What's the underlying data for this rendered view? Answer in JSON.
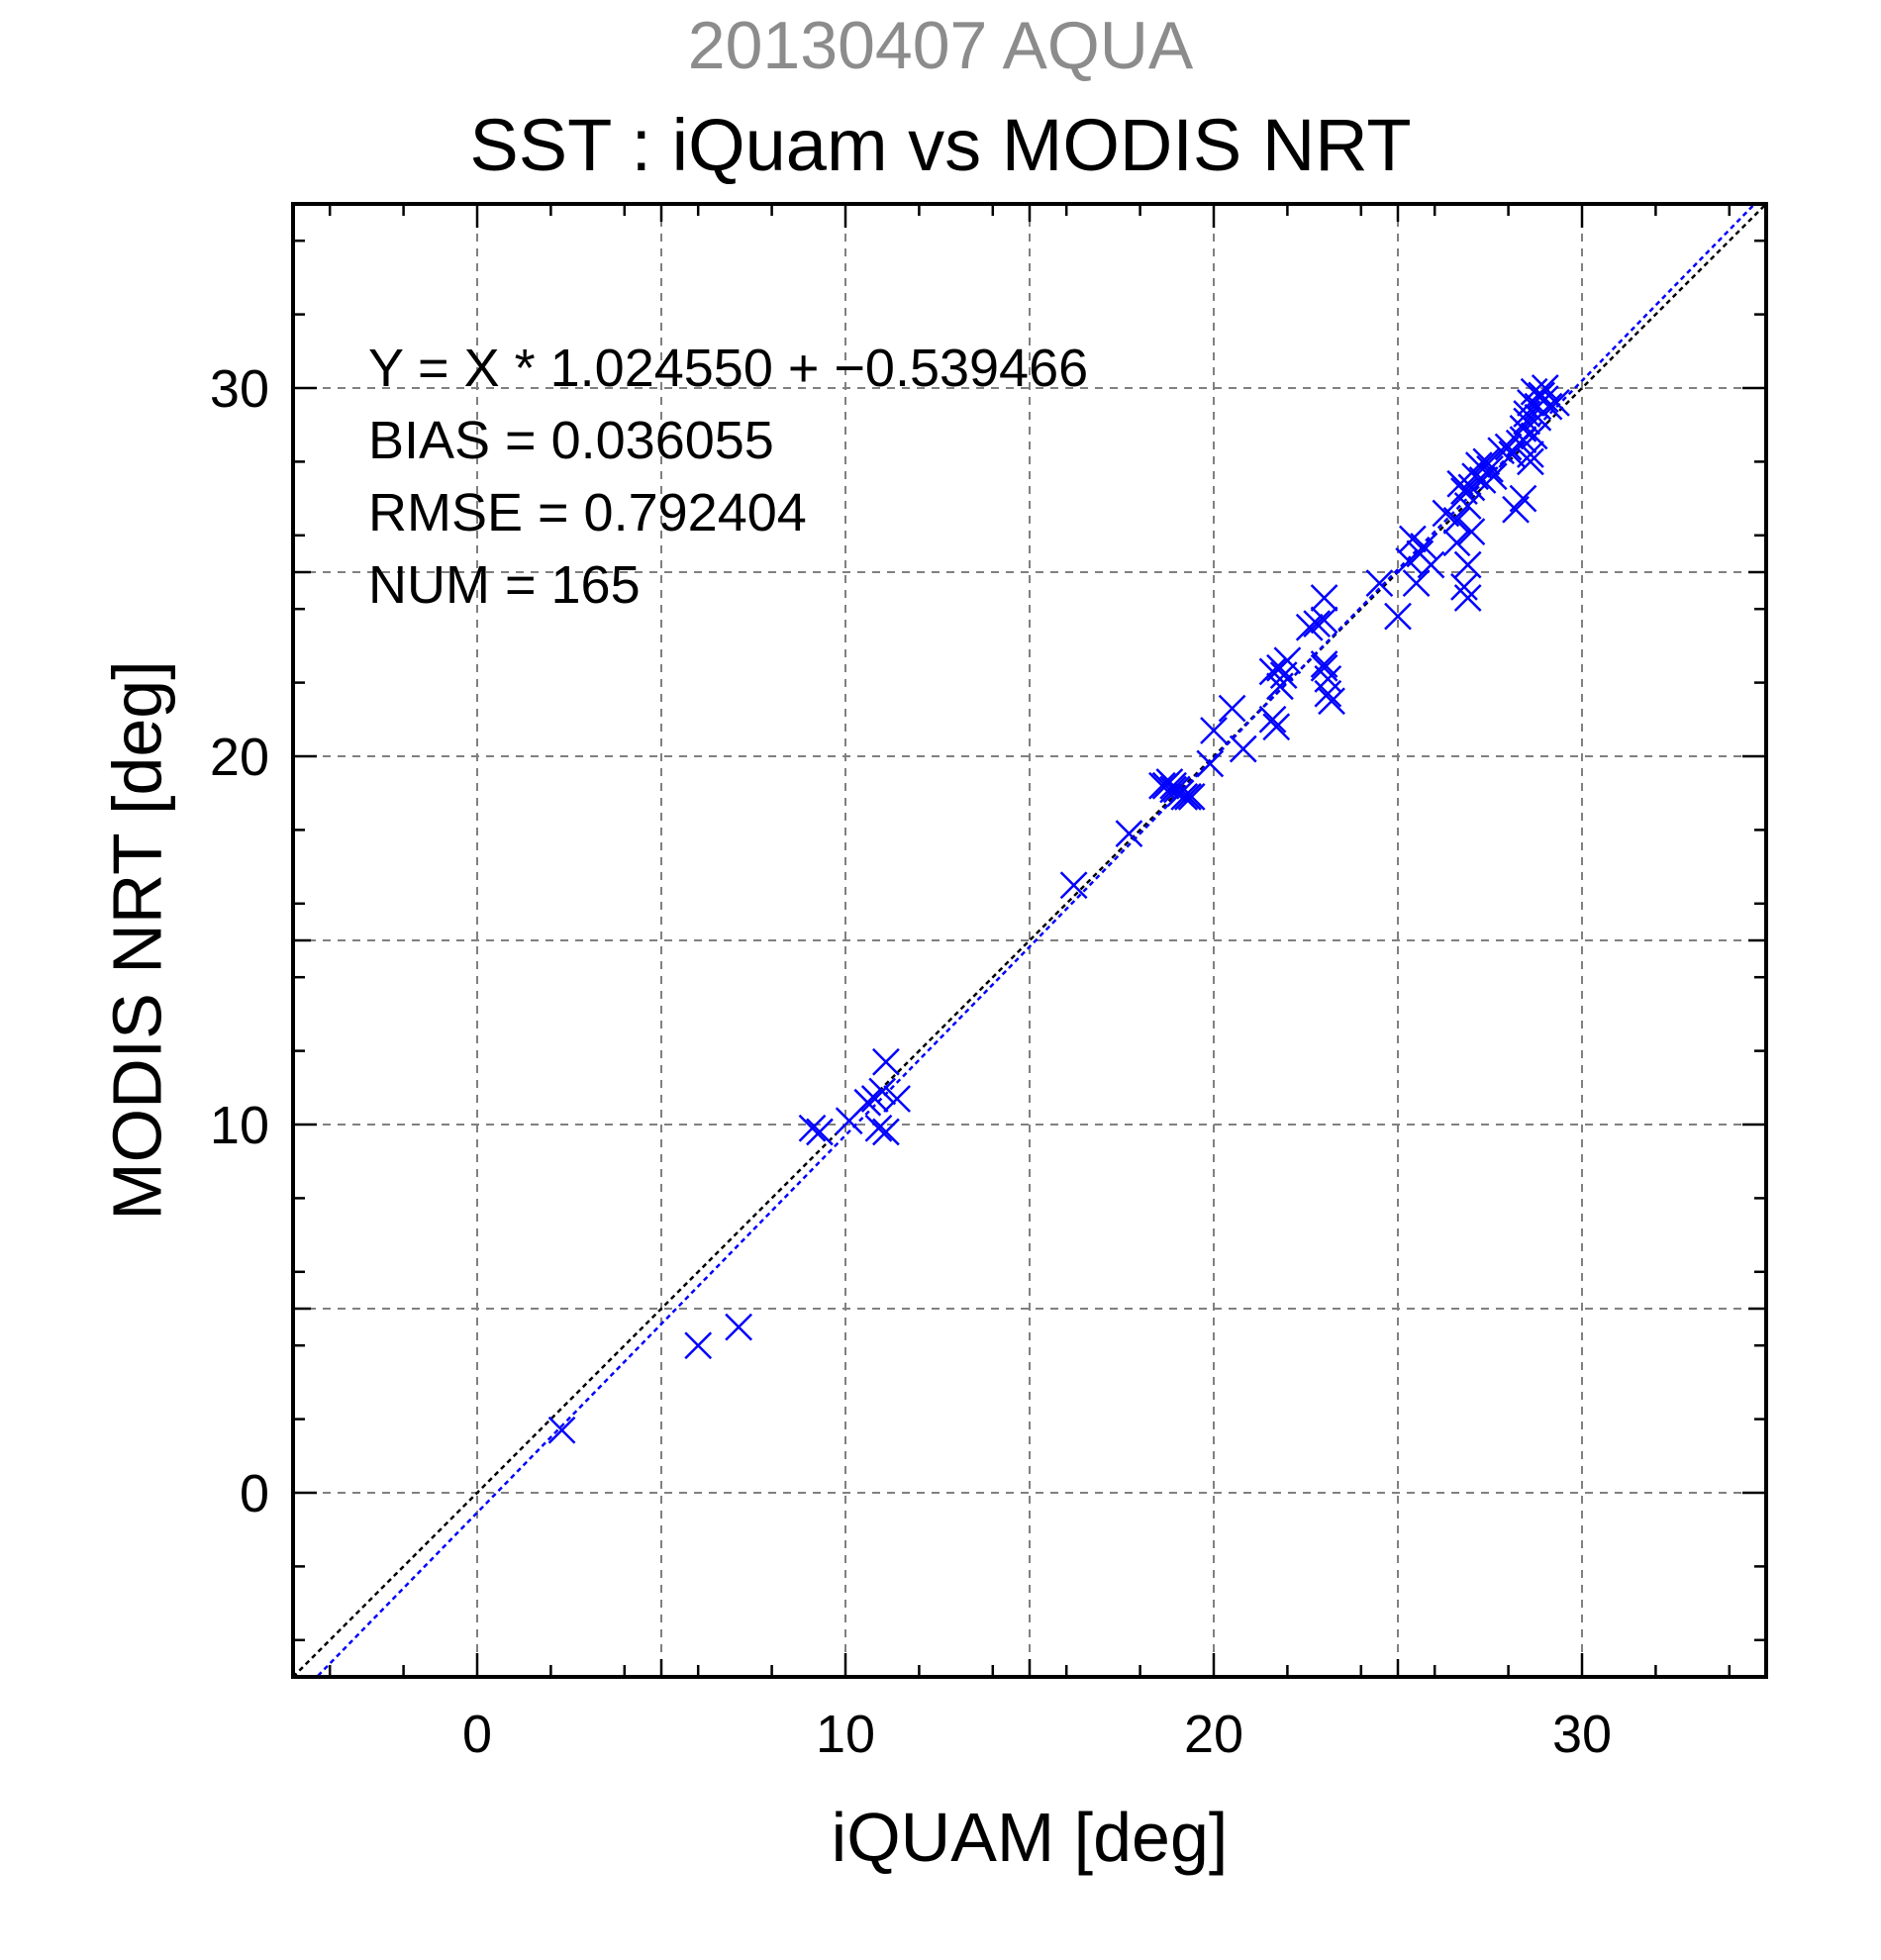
{
  "chart_data": {
    "type": "scatter",
    "subtitle": "20130407 AQUA",
    "title": "SST : iQuam vs MODIS NRT",
    "xlabel": "iQUAM [deg]",
    "ylabel": "MODIS NRT [deg]",
    "xlim": [
      -5,
      35
    ],
    "ylim": [
      -5,
      35
    ],
    "xticks": [
      0,
      10,
      20,
      30
    ],
    "yticks": [
      0,
      10,
      20,
      30
    ],
    "grid": true,
    "marker": "x",
    "colors": {
      "points": "#0000ff",
      "fit_line": "#0000ff",
      "identity_line": "#000000",
      "grid": "#808080",
      "subtitle": "#8c8c8c"
    },
    "annotations": {
      "equation": "Y = X * 1.024550 + −0.539466",
      "bias": "BIAS = 0.036055",
      "rmse": "RMSE = 0.792404",
      "num": "NUM = 165"
    },
    "lines": [
      {
        "kind": "identity",
        "slope": 1,
        "intercept": 0
      },
      {
        "kind": "fit",
        "slope": 1.02455,
        "intercept": -0.539466
      }
    ],
    "series": [
      {
        "x": [
          2.3,
          6.0,
          7.1,
          9.1,
          9.3,
          10.1,
          10.6,
          10.8,
          11.0,
          10.9,
          11.1,
          11.4,
          11.1,
          16.2,
          17.7,
          18.6,
          18.8,
          19.0,
          19.2,
          18.9,
          19.3,
          19.1,
          18.7,
          18.9,
          19.4,
          19.9,
          20.0,
          20.5,
          20.8,
          21.6,
          21.7,
          21.8,
          21.9,
          22.0,
          21.6,
          21.8,
          22.6,
          22.8,
          23.0,
          23.0,
          23.0,
          23.1,
          23.2,
          23.1,
          23.0,
          24.5,
          25.0,
          25.3,
          25.6,
          25.4,
          25.7,
          25.5,
          25.9,
          26.3,
          26.6,
          26.7,
          26.8,
          26.9,
          27.0,
          26.8,
          26.9,
          27.0,
          27.1,
          27.2,
          27.3,
          27.4,
          27.5,
          27.6,
          27.8,
          28.0,
          28.1,
          28.3,
          28.4,
          28.5,
          28.6,
          28.7,
          28.8,
          28.6,
          28.5,
          28.4,
          28.9,
          29.0,
          29.1,
          29.3,
          28.7,
          28.2,
          28.6,
          28.4,
          28.8,
          29.0,
          26.9,
          26.6
        ],
        "y": [
          1.7,
          4.0,
          4.5,
          9.9,
          9.8,
          10.1,
          10.6,
          10.7,
          10.9,
          9.9,
          9.8,
          10.7,
          11.7,
          16.5,
          17.9,
          19.2,
          19.3,
          19.1,
          18.9,
          19.2,
          18.9,
          19.0,
          19.2,
          19.1,
          18.9,
          19.8,
          20.7,
          21.3,
          20.2,
          21.0,
          20.8,
          22.4,
          22.2,
          22.6,
          22.3,
          21.9,
          23.5,
          23.6,
          24.3,
          23.7,
          22.5,
          22.1,
          21.5,
          21.7,
          22.4,
          24.7,
          23.8,
          25.3,
          25.5,
          25.9,
          25.7,
          24.7,
          25.2,
          26.6,
          26.4,
          27.4,
          27.2,
          26.8,
          26.1,
          24.6,
          24.3,
          27.3,
          27.6,
          27.9,
          27.5,
          28.0,
          27.8,
          27.6,
          28.3,
          28.4,
          28.2,
          28.5,
          28.6,
          29.3,
          29.6,
          29.9,
          29.5,
          28.2,
          29.1,
          27.0,
          29.8,
          29.7,
          29.5,
          29.6,
          28.7,
          26.7,
          28.0,
          28.9,
          29.2,
          30.0,
          25.2,
          25.8
        ]
      }
    ]
  }
}
